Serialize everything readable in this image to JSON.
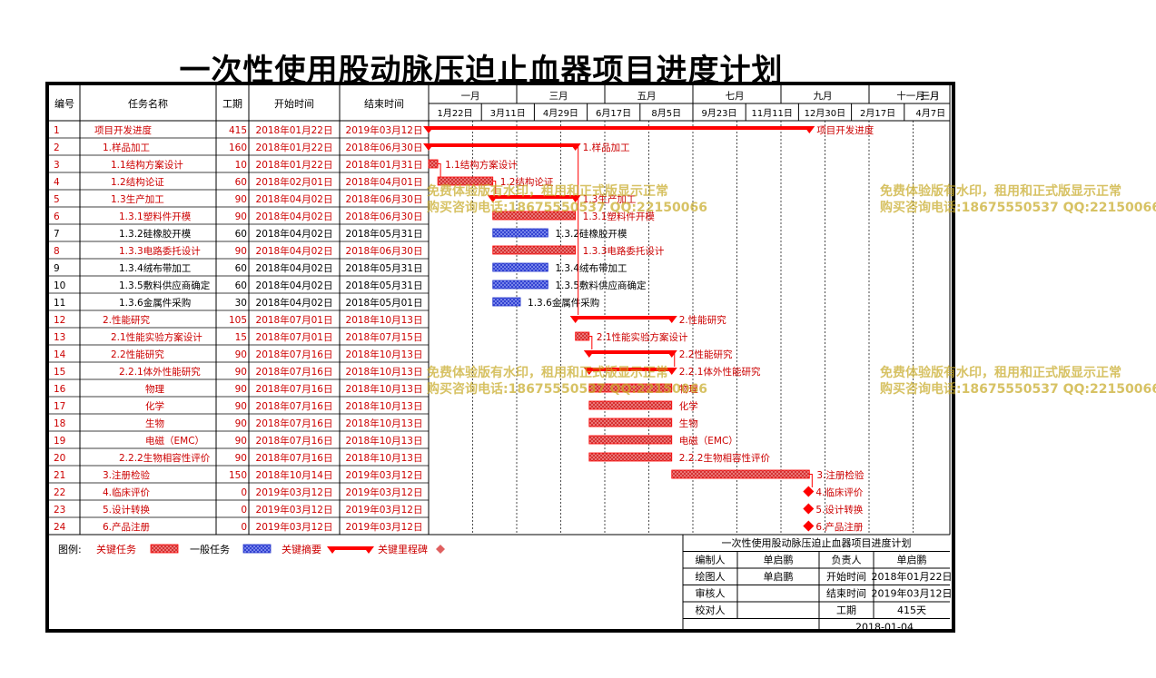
{
  "title": "一次性使用股动脉压迫止血器项目进度计划",
  "headers": {
    "id": "编号",
    "name": "任务名称",
    "duration": "工期",
    "start": "开始时间",
    "end": "结束时间"
  },
  "timeline": {
    "months": [
      "一月",
      "三月",
      "五月",
      "七月",
      "九月",
      "十一月",
      "一月",
      "三月"
    ],
    "dates": [
      "1月22日",
      "3月11日",
      "4月29日",
      "6月17日",
      "8月5日",
      "9月23日",
      "11月11日",
      "12月30日",
      "2月17日",
      "4月7日"
    ]
  },
  "colors": {
    "critical": "#ff0000",
    "critical_text": "#cc0000",
    "summary_blue": "#2233cc",
    "hatch_red": "#e64848",
    "watermark": "#c8aa28"
  },
  "tasks": [
    {
      "id": "1",
      "name": "项目开发进度",
      "indent": 0,
      "duration": "415",
      "start": "2018年01月22日",
      "end": "2019年03月12日",
      "red": true,
      "kind": "summary",
      "s": "2018-01-22",
      "e": "2019-03-12",
      "label": "项目开发进度"
    },
    {
      "id": "2",
      "name": "1.样品加工",
      "indent": 1,
      "duration": "160",
      "start": "2018年01月22日",
      "end": "2018年06月30日",
      "red": true,
      "kind": "summary",
      "s": "2018-01-22",
      "e": "2018-06-30",
      "label": "1.样品加工"
    },
    {
      "id": "3",
      "name": "1.1结构方案设计",
      "indent": 2,
      "duration": "10",
      "start": "2018年01月22日",
      "end": "2018年01月31日",
      "red": true,
      "kind": "red",
      "s": "2018-01-22",
      "e": "2018-01-31",
      "label": "1.1结构方案设计"
    },
    {
      "id": "4",
      "name": "1.2结构论证",
      "indent": 2,
      "duration": "60",
      "start": "2018年02月01日",
      "end": "2018年04月01日",
      "red": true,
      "kind": "red",
      "s": "2018-02-01",
      "e": "2018-04-01",
      "label": "1.2结构论证"
    },
    {
      "id": "5",
      "name": "1.3生产加工",
      "indent": 2,
      "duration": "90",
      "start": "2018年04月02日",
      "end": "2018年06月30日",
      "red": true,
      "kind": "summary",
      "s": "2018-04-02",
      "e": "2018-06-30",
      "label": "1.3生产加工"
    },
    {
      "id": "6",
      "name": "1.3.1塑料件开模",
      "indent": 3,
      "duration": "90",
      "start": "2018年04月02日",
      "end": "2018年06月30日",
      "red": true,
      "kind": "red",
      "s": "2018-04-02",
      "e": "2018-06-30",
      "label": "1.3.1塑料件开模"
    },
    {
      "id": "7",
      "name": "1.3.2硅橡胶开模",
      "indent": 3,
      "duration": "60",
      "start": "2018年04月02日",
      "end": "2018年05月31日",
      "red": false,
      "kind": "blue",
      "s": "2018-04-02",
      "e": "2018-05-31",
      "label": "1.3.2硅橡胶开模"
    },
    {
      "id": "8",
      "name": "1.3.3电路委托设计",
      "indent": 3,
      "duration": "90",
      "start": "2018年04月02日",
      "end": "2018年06月30日",
      "red": true,
      "kind": "red",
      "s": "2018-04-02",
      "e": "2018-06-30",
      "label": "1.3.3电路委托设计"
    },
    {
      "id": "9",
      "name": "1.3.4绒布带加工",
      "indent": 3,
      "duration": "60",
      "start": "2018年04月02日",
      "end": "2018年05月31日",
      "red": false,
      "kind": "blue",
      "s": "2018-04-02",
      "e": "2018-05-31",
      "label": "1.3.4绒布带加工"
    },
    {
      "id": "10",
      "name": "1.3.5敷料供应商确定",
      "indent": 3,
      "duration": "60",
      "start": "2018年04月02日",
      "end": "2018年05月31日",
      "red": false,
      "kind": "blue",
      "s": "2018-04-02",
      "e": "2018-05-31",
      "label": "1.3.5敷料供应商确定"
    },
    {
      "id": "11",
      "name": "1.3.6金属件采购",
      "indent": 3,
      "duration": "30",
      "start": "2018年04月02日",
      "end": "2018年05月01日",
      "red": false,
      "kind": "blue",
      "s": "2018-04-02",
      "e": "2018-05-01",
      "label": "1.3.6金属件采购"
    },
    {
      "id": "12",
      "name": "2.性能研究",
      "indent": 1,
      "duration": "105",
      "start": "2018年07月01日",
      "end": "2018年10月13日",
      "red": true,
      "kind": "summary",
      "s": "2018-07-01",
      "e": "2018-10-13",
      "label": "2.性能研究"
    },
    {
      "id": "13",
      "name": "2.1性能实验方案设计",
      "indent": 2,
      "duration": "15",
      "start": "2018年07月01日",
      "end": "2018年07月15日",
      "red": true,
      "kind": "red",
      "s": "2018-07-01",
      "e": "2018-07-15",
      "label": "2.1性能实验方案设计"
    },
    {
      "id": "14",
      "name": "2.2性能研究",
      "indent": 2,
      "duration": "90",
      "start": "2018年07月16日",
      "end": "2018年10月13日",
      "red": true,
      "kind": "summary",
      "s": "2018-07-16",
      "e": "2018-10-13",
      "label": "2.2性能研究"
    },
    {
      "id": "15",
      "name": "2.2.1体外性能研究",
      "indent": 3,
      "duration": "90",
      "start": "2018年07月16日",
      "end": "2018年10月13日",
      "red": true,
      "kind": "summary",
      "s": "2018-07-16",
      "e": "2018-10-13",
      "label": "2.2.1体外性能研究"
    },
    {
      "id": "16",
      "name": "物理",
      "indent": 4,
      "duration": "90",
      "start": "2018年07月16日",
      "end": "2018年10月13日",
      "red": true,
      "kind": "red",
      "s": "2018-07-16",
      "e": "2018-10-13",
      "label": "物理"
    },
    {
      "id": "17",
      "name": "化学",
      "indent": 4,
      "duration": "90",
      "start": "2018年07月16日",
      "end": "2018年10月13日",
      "red": true,
      "kind": "red",
      "s": "2018-07-16",
      "e": "2018-10-13",
      "label": "化学"
    },
    {
      "id": "18",
      "name": "生物",
      "indent": 4,
      "duration": "90",
      "start": "2018年07月16日",
      "end": "2018年10月13日",
      "red": true,
      "kind": "red",
      "s": "2018-07-16",
      "e": "2018-10-13",
      "label": "生物"
    },
    {
      "id": "19",
      "name": "电磁（EMC）",
      "indent": 4,
      "duration": "90",
      "start": "2018年07月16日",
      "end": "2018年10月13日",
      "red": true,
      "kind": "red",
      "s": "2018-07-16",
      "e": "2018-10-13",
      "label": "电磁（EMC）"
    },
    {
      "id": "20",
      "name": "2.2.2生物相容性评价",
      "indent": 3,
      "duration": "90",
      "start": "2018年07月16日",
      "end": "2018年10月13日",
      "red": true,
      "kind": "red",
      "s": "2018-07-16",
      "e": "2018-10-13",
      "label": "2.2.2生物相容性评价"
    },
    {
      "id": "21",
      "name": "3.注册检验",
      "indent": 1,
      "duration": "150",
      "start": "2018年10月14日",
      "end": "2019年03月12日",
      "red": true,
      "kind": "red",
      "s": "2018-10-14",
      "e": "2019-03-12",
      "label": "3.注册检验"
    },
    {
      "id": "22",
      "name": "4.临床评价",
      "indent": 1,
      "duration": "0",
      "start": "2019年03月12日",
      "end": "2019年03月12日",
      "red": true,
      "kind": "milestone",
      "s": "2019-03-12",
      "e": "2019-03-12",
      "label": "4.临床评价"
    },
    {
      "id": "23",
      "name": "5.设计转换",
      "indent": 1,
      "duration": "0",
      "start": "2019年03月12日",
      "end": "2019年03月12日",
      "red": true,
      "kind": "milestone",
      "s": "2019-03-12",
      "e": "2019-03-12",
      "label": "5.设计转换"
    },
    {
      "id": "24",
      "name": "6.产品注册",
      "indent": 1,
      "duration": "0",
      "start": "2019年03月12日",
      "end": "2019年03月12日",
      "red": true,
      "kind": "milestone",
      "s": "2019-03-12",
      "e": "2019-03-12",
      "label": "6.产品注册"
    }
  ],
  "legend": {
    "caption": "图例:",
    "items": [
      "关键任务",
      "一般任务",
      "关键摘要",
      "关键里程碑"
    ]
  },
  "info": {
    "title": "一次性使用股动脉压迫止血器项目进度计划",
    "rows": [
      [
        "编制人",
        "单启鹏",
        "负责人",
        "单启鹏"
      ],
      [
        "绘图人",
        "单启鹏",
        "开始时间",
        "2018年01月22日"
      ],
      [
        "审核人",
        "",
        "结束时间",
        "2019年03月12日"
      ],
      [
        "校对人",
        "",
        "工期",
        "415天"
      ]
    ],
    "date": "2018-01-04"
  },
  "watermark": {
    "line1": "免费体验版有水印，租用和正式版显示正常",
    "line2": "购买咨询电话:18675550537 QQ:22150066"
  }
}
